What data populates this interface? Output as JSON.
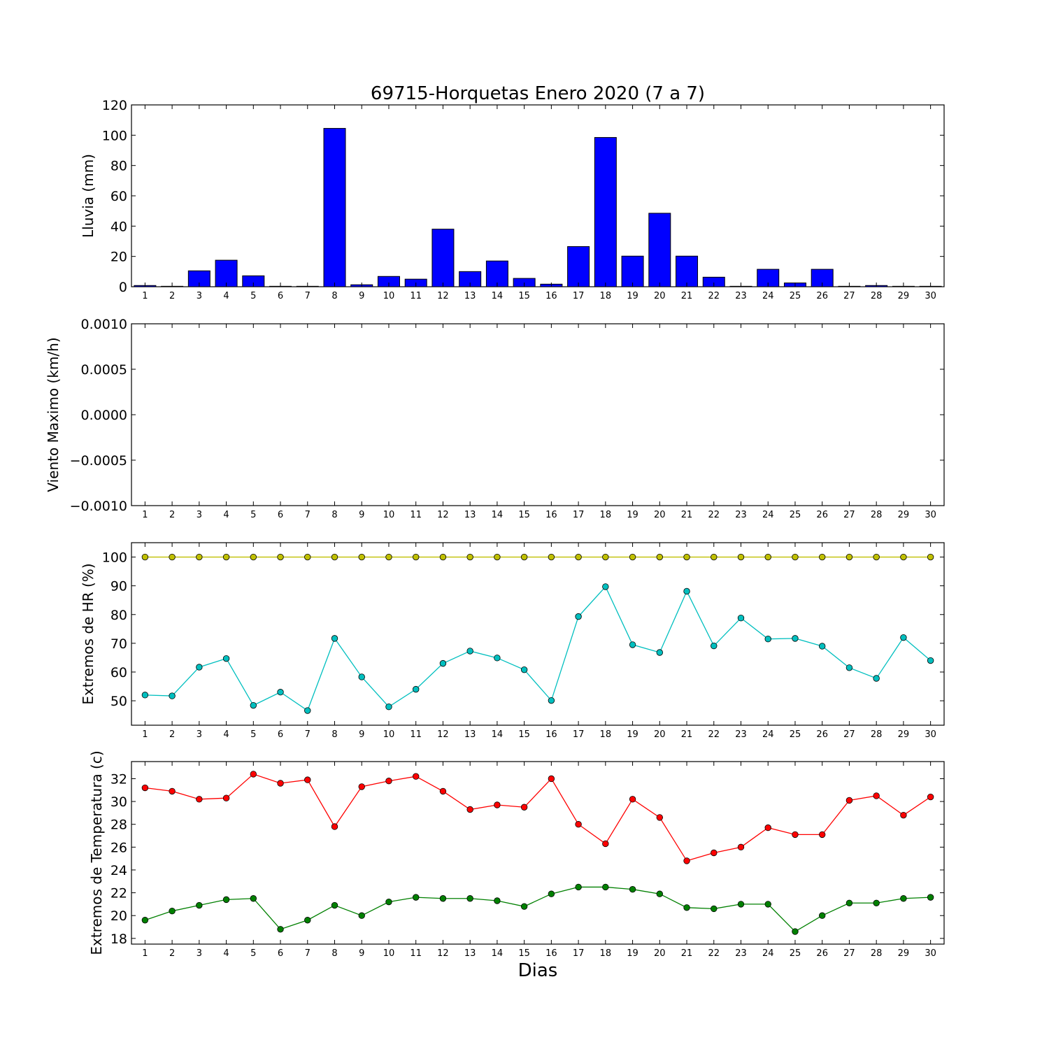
{
  "chart_data": {
    "title": "69715-Horquetas Enero 2020  (7 a 7)",
    "xlabel": "Dias",
    "days": [
      1,
      2,
      3,
      4,
      5,
      6,
      7,
      8,
      9,
      10,
      11,
      12,
      13,
      14,
      15,
      16,
      17,
      18,
      19,
      20,
      21,
      22,
      23,
      24,
      25,
      26,
      27,
      28,
      29,
      30
    ],
    "panels": [
      {
        "type": "bar",
        "ylabel": "Lluvia (mm)",
        "ylim": [
          0,
          120
        ],
        "yticks": [
          "0",
          "20",
          "40",
          "60",
          "80",
          "100",
          "120"
        ],
        "ytick_values": [
          0,
          20,
          40,
          60,
          80,
          100,
          120
        ],
        "series": [
          {
            "values": [
              0.8,
              0.3,
              10.5,
              17.5,
              7.2,
              0.3,
              0.3,
              104.5,
              1.3,
              6.8,
              5.0,
              38.0,
              10.0,
              17.0,
              5.5,
              1.7,
              26.5,
              98.5,
              20.2,
              48.5,
              20.2,
              6.3,
              0.3,
              11.5,
              2.5,
              11.5,
              0.3,
              0.8,
              0.3,
              0.3
            ],
            "color": "#0000ff"
          }
        ]
      },
      {
        "type": "line",
        "ylabel": "Viento Maximo (km/h)",
        "ylim": [
          -0.001,
          0.001
        ],
        "yticks": [
          "−0.0010",
          "−0.0005",
          "0.0000",
          "0.0005",
          "0.0010"
        ],
        "ytick_values": [
          -0.001,
          -0.0005,
          0,
          0.0005,
          0.001
        ],
        "series": []
      },
      {
        "type": "line",
        "ylabel": "Extremos de HR (%)",
        "ylim": [
          41.5,
          105
        ],
        "yticks": [
          "50",
          "60",
          "70",
          "80",
          "90",
          "100"
        ],
        "ytick_values": [
          50,
          60,
          70,
          80,
          90,
          100
        ],
        "series": [
          {
            "values": [
              100,
              100,
              100,
              100,
              100,
              100,
              100,
              100,
              100,
              100,
              100,
              100,
              100,
              100,
              100,
              100,
              100,
              100,
              100,
              100,
              100,
              100,
              100,
              100,
              100,
              100,
              100,
              100,
              100,
              100
            ],
            "color": "#bfbf00"
          },
          {
            "values": [
              52,
              51.7,
              61.7,
              64.7,
              48.4,
              53,
              46.6,
              71.7,
              58.3,
              47.9,
              54,
              63,
              67.3,
              64.9,
              60.8,
              50.1,
              79.3,
              89.7,
              69.5,
              66.8,
              88.1,
              69.1,
              78.8,
              71.5,
              71.7,
              69,
              61.5,
              57.8,
              72,
              64
            ],
            "color": "#00bfbf"
          }
        ]
      },
      {
        "type": "line",
        "ylabel": "Extremos de Temperatura (c)",
        "ylim": [
          17.5,
          33.5
        ],
        "yticks": [
          "18",
          "20",
          "22",
          "24",
          "26",
          "28",
          "30",
          "32"
        ],
        "ytick_values": [
          18,
          20,
          22,
          24,
          26,
          28,
          30,
          32
        ],
        "series": [
          {
            "values": [
              31.2,
              30.9,
              30.2,
              30.3,
              32.4,
              31.6,
              31.9,
              27.8,
              31.3,
              31.8,
              32.2,
              30.9,
              29.3,
              29.7,
              29.5,
              32.0,
              28.0,
              26.3,
              30.2,
              28.6,
              24.8,
              25.5,
              26.0,
              27.7,
              27.1,
              27.1,
              30.1,
              30.5,
              28.8,
              30.4
            ],
            "color": "#ff0000"
          },
          {
            "values": [
              19.6,
              20.4,
              20.9,
              21.4,
              21.5,
              18.8,
              19.6,
              20.9,
              20.0,
              21.2,
              21.6,
              21.5,
              21.5,
              21.3,
              20.8,
              21.9,
              22.5,
              22.5,
              22.3,
              21.9,
              20.7,
              20.6,
              21.0,
              21.0,
              18.6,
              20.0,
              21.1,
              21.1,
              21.5,
              21.6
            ],
            "color": "#008000"
          }
        ]
      }
    ]
  }
}
